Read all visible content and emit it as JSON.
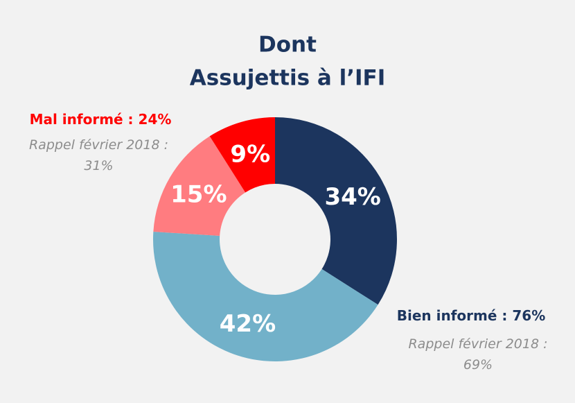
{
  "chart_data": {
    "type": "donut",
    "title": [
      "Dont",
      "Assujettis à l’IFI"
    ],
    "categories": [
      null,
      null,
      null,
      null
    ],
    "series": [
      {
        "values": [
          34,
          42,
          15,
          9
        ],
        "value_labels": [
          "34%",
          "42%",
          "15%",
          "9%"
        ],
        "colors": [
          "#1c355e",
          "#72b1c9",
          "#ff7c80",
          "#ff0000"
        ]
      }
    ],
    "annotations": [
      {
        "text": "Mal informé : 24%",
        "color": "#ff0000"
      },
      {
        "text": "Rappel février 2018 : 31%",
        "color": "#8c8c8c"
      },
      {
        "text": "Bien informé : 76%",
        "color": "#1c355e"
      },
      {
        "text": "Rappel février 2018 : 69%",
        "color": "#8c8c8c"
      }
    ]
  }
}
